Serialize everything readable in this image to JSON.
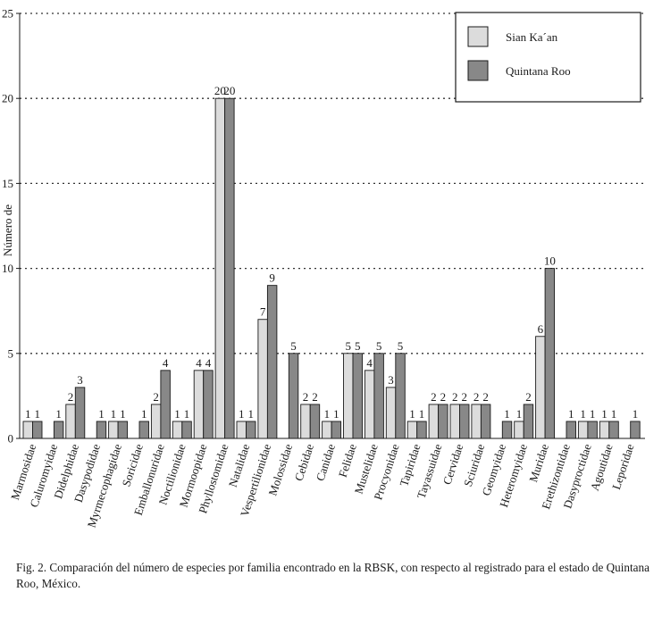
{
  "chart_data": {
    "type": "bar",
    "ylabel": "Número de",
    "ylim": [
      0,
      25
    ],
    "yticks": [
      0,
      5,
      10,
      15,
      20,
      25
    ],
    "grid": "dotted horizontal lines at 5, 10, 15, 20, 25",
    "legend_position": "top-right",
    "categories": [
      "Marmosidae",
      "Caluromyidae",
      "Didelphidae",
      "Dasypodidae",
      "Myrmecophagidae",
      "Soricidae",
      "Emballonuridae",
      "Noctilionidae",
      "Mormoopidae",
      "Phyllostomidae",
      "Natalidae",
      "Vespertilionidae",
      "Molossidae",
      "Cebidae",
      "Canidae",
      "Felidae",
      "Mustelidae",
      "Procyonidae",
      "Tapiridae",
      "Tayassuidae",
      "Cervidae",
      "Sciuridae",
      "Geomyidae",
      "Heteromyidae",
      "Muridae",
      "Erethizontidae",
      "Dasyproctidae",
      "Agoutidae",
      "Leporidae"
    ],
    "series": [
      {
        "name": "Sian Ka´an",
        "color": "#dcdcdc",
        "values": [
          1,
          0,
          2,
          0,
          1,
          0,
          2,
          1,
          4,
          20,
          1,
          7,
          0,
          2,
          1,
          5,
          4,
          3,
          1,
          2,
          2,
          2,
          0,
          1,
          6,
          0,
          1,
          1,
          0
        ]
      },
      {
        "name": "Quintana Roo",
        "color": "#888888",
        "values": [
          1,
          1,
          3,
          1,
          1,
          1,
          4,
          1,
          4,
          20,
          1,
          9,
          5,
          2,
          1,
          5,
          5,
          5,
          1,
          2,
          2,
          2,
          1,
          2,
          10,
          1,
          1,
          1,
          1
        ]
      }
    ],
    "bar_labels": [
      [
        "1",
        "1"
      ],
      [
        "",
        "1"
      ],
      [
        "2",
        "3"
      ],
      [
        "",
        "1"
      ],
      [
        "1",
        "1"
      ],
      [
        "",
        "1"
      ],
      [
        "2",
        "4"
      ],
      [
        "1",
        "1"
      ],
      [
        "4",
        "4"
      ],
      [
        "20",
        "20"
      ],
      [
        "1",
        "1"
      ],
      [
        "7",
        "9"
      ],
      [
        "",
        "5"
      ],
      [
        "2",
        "2"
      ],
      [
        "1",
        "1"
      ],
      [
        "5",
        "5"
      ],
      [
        "4",
        "5"
      ],
      [
        "3",
        "5"
      ],
      [
        "1",
        "1"
      ],
      [
        "2",
        "2"
      ],
      [
        "2",
        "2"
      ],
      [
        "2",
        "2"
      ],
      [
        "",
        "1"
      ],
      [
        "1",
        "2"
      ],
      [
        "6",
        "10"
      ],
      [
        "",
        "1"
      ],
      [
        "1",
        "1"
      ],
      [
        "1",
        "1"
      ],
      [
        "",
        "1"
      ]
    ]
  },
  "caption": "Fig. 2. Comparación del número de especies por familia encontrado en la RBSK, con respecto al registrado para el estado de Quintana Roo, México."
}
